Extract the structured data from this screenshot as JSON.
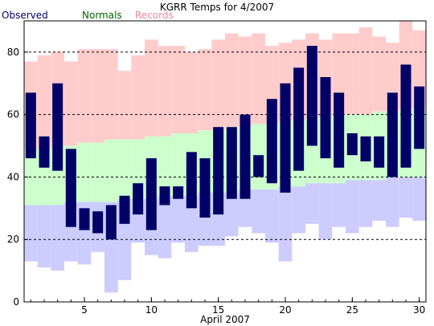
{
  "chart_data": {
    "type": "bar",
    "title": "KGRR Temps for 4/2007",
    "xlabel": "April 2007",
    "ylabel": "",
    "legend": [
      {
        "name": "Observed",
        "color": "#000066"
      },
      {
        "name": "Normals",
        "color": "#006600"
      },
      {
        "name": "Records",
        "color": "#e8889a"
      }
    ],
    "colors": {
      "observed": "#000066",
      "normals": "#ccffcc",
      "record_high": "#ffcccc",
      "record_low": "#ccccff"
    },
    "ylim": [
      0,
      90
    ],
    "yticks": [
      0,
      20,
      40,
      60,
      80
    ],
    "xlim": [
      0.5,
      30.5
    ],
    "xticks": [
      5,
      10,
      15,
      20,
      25,
      30
    ],
    "grid": "y-dashed",
    "legend_placement": "top-left",
    "days": [
      1,
      2,
      3,
      4,
      5,
      6,
      7,
      8,
      9,
      10,
      11,
      12,
      13,
      14,
      15,
      16,
      17,
      18,
      19,
      20,
      21,
      22,
      23,
      24,
      25,
      26,
      27,
      28,
      29,
      30
    ],
    "record_high": [
      77,
      79,
      80,
      77,
      81,
      81,
      81,
      74,
      79,
      84,
      82,
      82,
      80,
      81,
      84,
      86,
      85,
      86,
      82,
      83,
      84,
      86,
      84,
      86,
      86,
      88,
      85,
      83,
      90,
      87
    ],
    "normal_high": [
      49,
      49,
      50,
      50,
      51,
      51,
      52,
      52,
      52,
      53,
      53,
      54,
      54,
      55,
      55,
      56,
      56,
      57,
      57,
      58,
      58,
      59,
      59,
      60,
      60,
      60,
      61,
      61,
      62,
      62
    ],
    "normal_low": [
      31,
      31,
      31,
      32,
      32,
      32,
      32,
      33,
      33,
      33,
      34,
      34,
      34,
      35,
      35,
      35,
      36,
      36,
      36,
      37,
      37,
      38,
      38,
      38,
      39,
      39,
      39,
      40,
      40,
      40
    ],
    "record_low": [
      13,
      11,
      10,
      13,
      12,
      16,
      3,
      7,
      19,
      15,
      14,
      19,
      16,
      18,
      18,
      21,
      24,
      22,
      19,
      13,
      22,
      25,
      20,
      24,
      22,
      24,
      26,
      24,
      27,
      26
    ],
    "observed_high": [
      67,
      53,
      70,
      49,
      30,
      29,
      31,
      34,
      38,
      46,
      37,
      37,
      48,
      46,
      56,
      56,
      60,
      47,
      65,
      70,
      75,
      82,
      72,
      67,
      54,
      53,
      53,
      67,
      76,
      69
    ],
    "observed_low": [
      46,
      43,
      42,
      24,
      23,
      22,
      20,
      25,
      28,
      23,
      31,
      33,
      30,
      27,
      28,
      33,
      33,
      40,
      38,
      35,
      42,
      50,
      46,
      43,
      47,
      45,
      43,
      40,
      43,
      49
    ]
  }
}
